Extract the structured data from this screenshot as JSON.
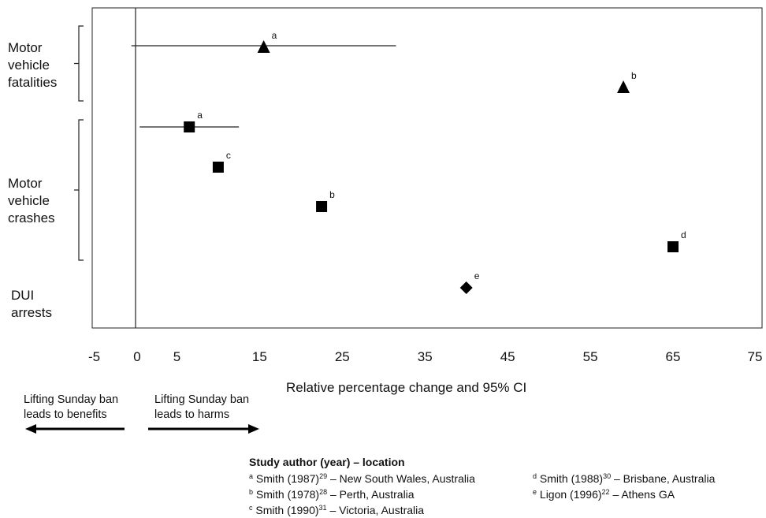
{
  "chart_data": {
    "type": "scatter",
    "xlabel": "Relative percentage change and 95% CI",
    "xlim": [
      -8,
      75
    ],
    "x_ticks": [
      "-5",
      "0",
      "5",
      "15",
      "25",
      "35",
      "45",
      "55",
      "65",
      "75"
    ],
    "groups": [
      {
        "label": "Motor\nvehicle\nfatalities"
      },
      {
        "label": "Motor\nvehicle\ncrashes"
      },
      {
        "label": "DUI\narrests"
      }
    ],
    "series": [
      {
        "group": "Motor vehicle fatalities",
        "marker": "triangle",
        "points": [
          {
            "x": 15.5,
            "label": "a",
            "ci": [
              -0.5,
              31.5
            ]
          },
          {
            "x": 59,
            "label": "b"
          }
        ]
      },
      {
        "group": "Motor vehicle crashes",
        "marker": "square",
        "points": [
          {
            "x": 6.5,
            "label": "a",
            "ci": [
              0.5,
              12.5
            ]
          },
          {
            "x": 10,
            "label": "c"
          },
          {
            "x": 22.5,
            "label": "b"
          },
          {
            "x": 65,
            "label": "d"
          }
        ]
      },
      {
        "group": "DUI arrests",
        "marker": "diamond",
        "points": [
          {
            "x": 40,
            "label": "e"
          }
        ]
      }
    ]
  },
  "directions": {
    "left": "Lifting Sunday ban\nleads to benefits",
    "right": "Lifting Sunday ban\nleads to harms"
  },
  "legend": {
    "heading": "Study author (year) – location",
    "entries": [
      {
        "key": "a",
        "author": "Smith (1987)",
        "ref": "29",
        "location": "– New South Wales, Australia"
      },
      {
        "key": "b",
        "author": "Smith (1978)",
        "ref": "28",
        "location": "– Perth, Australia"
      },
      {
        "key": "c",
        "author": "Smith (1990)",
        "ref": "31",
        "location": "– Victoria, Australia"
      },
      {
        "key": "d",
        "author": "Smith (1988)",
        "ref": "30",
        "location": "– Brisbane, Australia"
      },
      {
        "key": "e",
        "author": "Ligon (1996)",
        "ref": "22",
        "location": "– Athens GA"
      }
    ]
  }
}
